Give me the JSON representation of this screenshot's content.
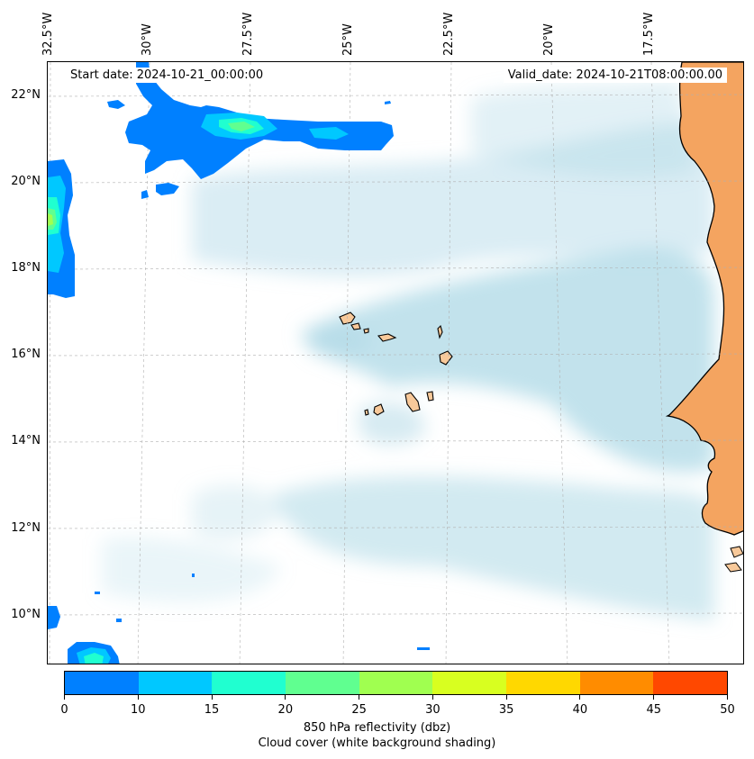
{
  "map": {
    "start_date": "Start date: 2024-10-21_00:00:00",
    "valid_date": "Valid_date: 2024-10-21T08:00:00.00",
    "lon_labels": [
      "32.5°W",
      "30°W",
      "27.5°W",
      "25°W",
      "22.5°W",
      "20°W",
      "17.5°W"
    ],
    "lat_labels": [
      "22°N",
      "20°N",
      "18°N",
      "16°N",
      "14°N",
      "12°N",
      "10°N"
    ],
    "colors": {
      "ocean": "#ffffff",
      "cloud": "#add8e6",
      "land": "#f4a460",
      "island": "#f8c99a",
      "coast": "#000000",
      "grid": "#b0b0b0"
    }
  },
  "colorbar": {
    "ticks": [
      "0",
      "10",
      "15",
      "20",
      "25",
      "30",
      "35",
      "40",
      "45",
      "50"
    ],
    "colors": [
      "#0080ff",
      "#00c8ff",
      "#20ffd0",
      "#60ff90",
      "#a0ff50",
      "#d8ff20",
      "#ffd800",
      "#ff8c00",
      "#ff4800"
    ],
    "label_line1": "850 hPa reflectivity (dbz)",
    "label_line2": "Cloud cover (white background shading)"
  }
}
